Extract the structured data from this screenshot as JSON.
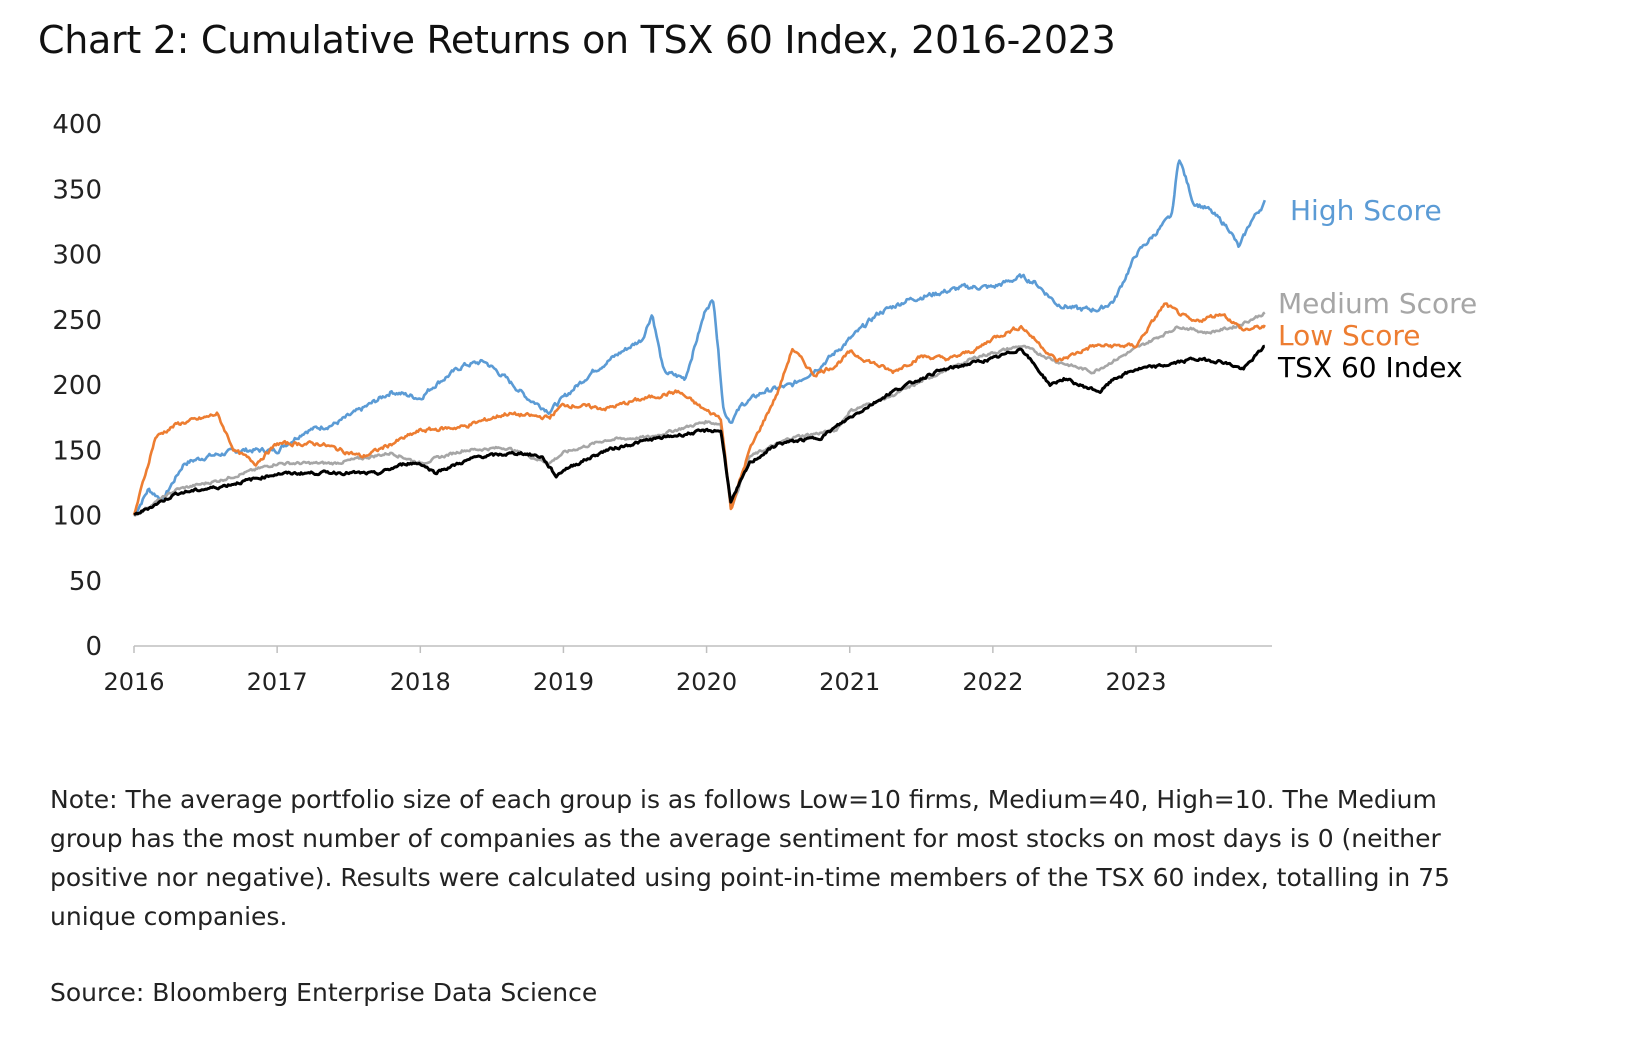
{
  "title": "Chart 2: Cumulative Returns on TSX 60 Index, 2016-2023",
  "note": "Note: The average portfolio size of each group is as follows Low=10 firms, Medium=40, High=10. The Medium group has the most number of companies as the average sentiment for most stocks on most days is 0 (neither positive nor negative). Results were calculated using point-in-time members of the TSX 60 index, totalling in 75 unique companies.",
  "source": "Source: Bloomberg Enterprise Data Science",
  "chart_data": {
    "type": "line",
    "title": "Chart 2: Cumulative Returns on TSX 60 Index, 2016-2023",
    "xlabel": "",
    "ylabel": "",
    "ylim": [
      0,
      400
    ],
    "xlim": [
      2016.0,
      2023.95
    ],
    "yticks": [
      0,
      50,
      100,
      150,
      200,
      250,
      300,
      350,
      400
    ],
    "xticks": [
      "2016",
      "2017",
      "2018",
      "2019",
      "2020",
      "2021",
      "2022",
      "2023"
    ],
    "grid": false,
    "legend": "end-of-line labels",
    "series": [
      {
        "name": "High Score",
        "color": "#5b9bd5",
        "x": [
          2016.0,
          2016.1,
          2016.2,
          2016.35,
          2016.5,
          2016.75,
          2017.0,
          2017.2,
          2017.4,
          2017.6,
          2017.8,
          2018.0,
          2018.1,
          2018.3,
          2018.45,
          2018.6,
          2018.75,
          2018.9,
          2019.0,
          2019.2,
          2019.4,
          2019.55,
          2019.62,
          2019.7,
          2019.85,
          2020.0,
          2020.05,
          2020.12,
          2020.17,
          2020.25,
          2020.4,
          2020.6,
          2020.8,
          2021.0,
          2021.2,
          2021.4,
          2021.6,
          2021.8,
          2022.0,
          2022.2,
          2022.3,
          2022.45,
          2022.6,
          2022.75,
          2022.85,
          2023.0,
          2023.15,
          2023.25,
          2023.3,
          2023.4,
          2023.5,
          2023.65,
          2023.72,
          2023.8,
          2023.9
        ],
        "values": [
          100,
          120,
          112,
          140,
          145,
          150,
          150,
          165,
          170,
          182,
          195,
          190,
          200,
          215,
          218,
          205,
          190,
          180,
          190,
          210,
          225,
          235,
          255,
          210,
          205,
          260,
          265,
          180,
          172,
          185,
          195,
          200,
          215,
          235,
          255,
          265,
          270,
          275,
          275,
          283,
          278,
          262,
          258,
          258,
          265,
          300,
          318,
          330,
          375,
          340,
          335,
          320,
          305,
          325,
          340
        ]
      },
      {
        "name": "Medium Score",
        "color": "#a6a6a6",
        "x": [
          2016.0,
          2016.3,
          2016.6,
          2017.0,
          2017.4,
          2017.8,
          2018.0,
          2018.3,
          2018.6,
          2018.9,
          2019.0,
          2019.3,
          2019.6,
          2020.0,
          2020.1,
          2020.17,
          2020.3,
          2020.6,
          2020.9,
          2021.0,
          2021.3,
          2021.6,
          2021.9,
          2022.2,
          2022.45,
          2022.7,
          2023.0,
          2023.3,
          2023.5,
          2023.7,
          2023.9
        ],
        "values": [
          100,
          120,
          127,
          140,
          140,
          148,
          140,
          150,
          152,
          140,
          148,
          158,
          160,
          172,
          170,
          105,
          145,
          160,
          165,
          180,
          192,
          208,
          222,
          230,
          218,
          210,
          228,
          245,
          240,
          245,
          255
        ]
      },
      {
        "name": "Low Score",
        "color": "#ed7d31",
        "x": [
          2016.0,
          2016.15,
          2016.3,
          2016.5,
          2016.58,
          2016.7,
          2016.85,
          2017.0,
          2017.3,
          2017.6,
          2017.8,
          2018.0,
          2018.3,
          2018.6,
          2018.9,
          2019.0,
          2019.3,
          2019.5,
          2019.8,
          2020.0,
          2020.1,
          2020.17,
          2020.3,
          2020.5,
          2020.6,
          2020.75,
          2020.9,
          2021.0,
          2021.3,
          2021.5,
          2021.7,
          2021.9,
          2022.0,
          2022.2,
          2022.45,
          2022.7,
          2023.0,
          2023.2,
          2023.4,
          2023.6,
          2023.75,
          2023.9
        ],
        "values": [
          100,
          160,
          170,
          175,
          178,
          150,
          140,
          155,
          155,
          145,
          155,
          165,
          168,
          178,
          175,
          185,
          182,
          188,
          195,
          180,
          175,
          105,
          150,
          195,
          228,
          208,
          215,
          225,
          210,
          222,
          220,
          228,
          236,
          245,
          218,
          230,
          230,
          262,
          248,
          255,
          242,
          245
        ]
      },
      {
        "name": "TSX 60 Index",
        "color": "#000000",
        "x": [
          2016.0,
          2016.3,
          2016.6,
          2017.0,
          2017.4,
          2017.7,
          2017.9,
          2018.0,
          2018.1,
          2018.4,
          2018.7,
          2018.85,
          2018.95,
          2019.0,
          2019.3,
          2019.6,
          2020.0,
          2020.1,
          2020.17,
          2020.3,
          2020.5,
          2020.8,
          2021.0,
          2021.3,
          2021.6,
          2021.9,
          2022.0,
          2022.2,
          2022.4,
          2022.5,
          2022.6,
          2022.75,
          2022.85,
          2023.0,
          2023.2,
          2023.4,
          2023.6,
          2023.75,
          2023.9
        ],
        "values": [
          100,
          117,
          122,
          132,
          133,
          132,
          140,
          140,
          133,
          145,
          148,
          145,
          130,
          135,
          150,
          158,
          165,
          165,
          110,
          140,
          155,
          160,
          175,
          195,
          210,
          218,
          220,
          228,
          200,
          205,
          200,
          195,
          205,
          212,
          215,
          220,
          218,
          212,
          230
        ]
      }
    ]
  }
}
